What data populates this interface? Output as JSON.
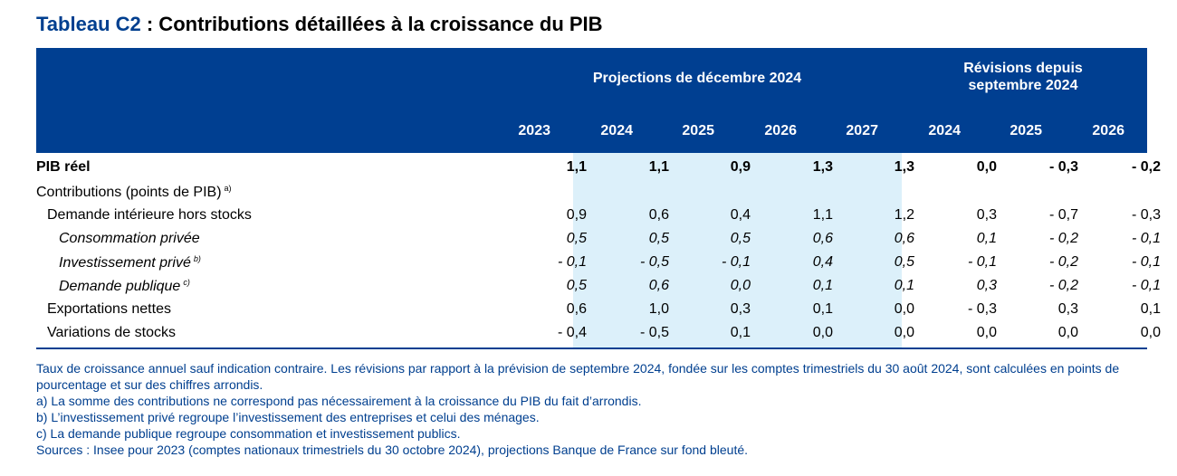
{
  "title": {
    "label": "Tableau C2",
    "text": " : Contributions détaillées à la croissance du PIB"
  },
  "header": {
    "group_projections": "Projections de décembre 2024",
    "group_revisions_line1": "Révisions depuis",
    "group_revisions_line2": "septembre 2024",
    "years": [
      "2023",
      "2024",
      "2025",
      "2026",
      "2027",
      "2024",
      "2025",
      "2026"
    ]
  },
  "rows": [
    {
      "label": "PIB réel",
      "sup": "",
      "values": [
        "1,1",
        "1,1",
        "0,9",
        "1,3",
        "1,3",
        "0,0",
        "- 0,3",
        "- 0,2"
      ]
    },
    {
      "label": "Contributions (points de PIB)",
      "sup": "a)",
      "values": [
        "",
        "",
        "",
        "",
        "",
        "",
        "",
        ""
      ]
    },
    {
      "label": "Demande intérieure hors stocks",
      "sup": "",
      "values": [
        "0,9",
        "0,6",
        "0,4",
        "1,1",
        "1,2",
        "0,3",
        "- 0,7",
        "- 0,3"
      ]
    },
    {
      "label": "Consommation privée",
      "sup": "",
      "values": [
        "0,5",
        "0,5",
        "0,5",
        "0,6",
        "0,6",
        "0,1",
        "- 0,2",
        "- 0,1"
      ]
    },
    {
      "label": "Investissement privé",
      "sup": "b)",
      "values": [
        "- 0,1",
        "- 0,5",
        "- 0,1",
        "0,4",
        "0,5",
        "- 0,1",
        "- 0,2",
        "- 0,1"
      ]
    },
    {
      "label": "Demande publique",
      "sup": "c)",
      "values": [
        "0,5",
        "0,6",
        "0,0",
        "0,1",
        "0,1",
        "0,3",
        "- 0,2",
        "- 0,1"
      ]
    },
    {
      "label": "Exportations nettes",
      "sup": "",
      "values": [
        "0,6",
        "1,0",
        "0,3",
        "0,1",
        "0,0",
        "- 0,3",
        "0,3",
        "0,1"
      ]
    },
    {
      "label": "Variations de stocks",
      "sup": "",
      "values": [
        "- 0,4",
        "- 0,5",
        "0,1",
        "0,0",
        "0,0",
        "0,0",
        "0,0",
        "0,0"
      ]
    }
  ],
  "notes": [
    "Taux de croissance annuel sauf indication contraire. Les révisions par rapport à la prévision de septembre 2024, fondée sur les comptes trimestriels du 30 août 2024, sont calculées en points de pourcentage et sur des chiffres arrondis.",
    "a)  La somme des contributions ne correspond pas nécessairement à la croissance du PIB du fait d’arrondis.",
    "b)  L’investissement privé regroupe l’investissement des entreprises et celui des ménages.",
    "c)  La demande publique regroupe consommation et investissement publics.",
    "Sources : Insee pour 2023 (comptes nationaux trimestriels du 30 octobre 2024), projections Banque de France sur fond bleuté."
  ],
  "colors": {
    "header_bg": "#003f91",
    "shade": "#dcf0fa",
    "note_text": "#003f8f"
  }
}
